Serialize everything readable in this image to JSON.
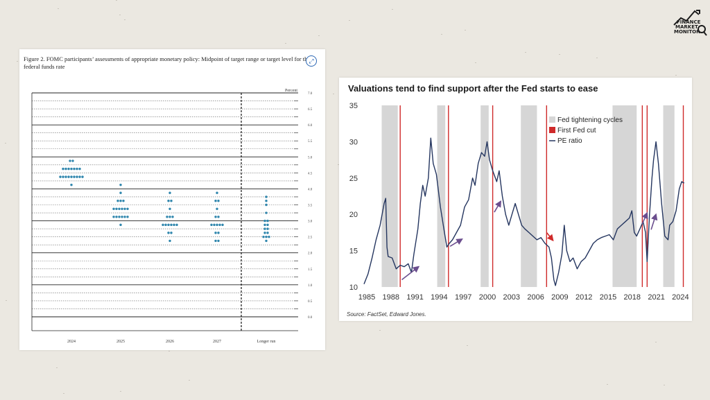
{
  "logo": {
    "line1": "FINANCE",
    "line2": "MARKET",
    "line3": "MONITOR"
  },
  "charts": [
    {
      "caption": "Figure 2.  FOMC participants’ assessments of appropriate monetary policy:  Midpoint of target range or target level for the federal funds rate",
      "chart_data": {
        "type": "scatter",
        "ylabel": "Percent",
        "ylim": [
          0,
          7
        ],
        "yticks": [
          "0.0",
          "0.5",
          "1.0",
          "1.5",
          "2.0",
          "2.5",
          "3.0",
          "3.5",
          "4.0",
          "4.5",
          "5.0",
          "5.5",
          "6.0",
          "6.5",
          "7.0"
        ],
        "categories": [
          "2024",
          "2025",
          "2026",
          "2027",
          "Longer run"
        ],
        "dots": [
          {
            "category": "2024",
            "levels": [
              {
                "rate": 4.125,
                "count": 1
              },
              {
                "rate": 4.375,
                "count": 9
              },
              {
                "rate": 4.625,
                "count": 7
              },
              {
                "rate": 4.875,
                "count": 2
              }
            ]
          },
          {
            "category": "2025",
            "levels": [
              {
                "rate": 2.875,
                "count": 1
              },
              {
                "rate": 3.125,
                "count": 6
              },
              {
                "rate": 3.375,
                "count": 6
              },
              {
                "rate": 3.625,
                "count": 3
              },
              {
                "rate": 3.875,
                "count": 1
              },
              {
                "rate": 4.125,
                "count": 1
              }
            ]
          },
          {
            "category": "2026",
            "levels": [
              {
                "rate": 2.375,
                "count": 1
              },
              {
                "rate": 2.625,
                "count": 2
              },
              {
                "rate": 2.875,
                "count": 6
              },
              {
                "rate": 3.125,
                "count": 3
              },
              {
                "rate": 3.375,
                "count": 1
              },
              {
                "rate": 3.625,
                "count": 2
              },
              {
                "rate": 3.875,
                "count": 1
              }
            ]
          },
          {
            "category": "2027",
            "levels": [
              {
                "rate": 2.375,
                "count": 2
              },
              {
                "rate": 2.625,
                "count": 2
              },
              {
                "rate": 2.875,
                "count": 5
              },
              {
                "rate": 3.125,
                "count": 2
              },
              {
                "rate": 3.375,
                "count": 1
              },
              {
                "rate": 3.625,
                "count": 2
              },
              {
                "rate": 3.875,
                "count": 1
              }
            ]
          },
          {
            "category": "Longer run",
            "levels": [
              {
                "rate": 2.375,
                "count": 1
              },
              {
                "rate": 2.5,
                "count": 3
              },
              {
                "rate": 2.625,
                "count": 2
              },
              {
                "rate": 2.75,
                "count": 2
              },
              {
                "rate": 2.875,
                "count": 2
              },
              {
                "rate": 3.0,
                "count": 2
              },
              {
                "rate": 3.25,
                "count": 1
              },
              {
                "rate": 3.5,
                "count": 1
              },
              {
                "rate": 3.625,
                "count": 1
              },
              {
                "rate": 3.75,
                "count": 1
              }
            ]
          }
        ],
        "colors": {
          "dot": "#2f86ad"
        }
      }
    },
    {
      "title": "Valuations tend to find support after the Fed starts to ease",
      "source": "Source: FactSet, Edward Jones.",
      "chart_data": {
        "type": "line",
        "ylim": [
          10,
          35
        ],
        "yticks": [
          10,
          15,
          20,
          25,
          30,
          35
        ],
        "xlim": [
          1985,
          2025
        ],
        "xticks": [
          1985,
          1988,
          1991,
          1994,
          1997,
          2000,
          2003,
          2006,
          2009,
          2012,
          2015,
          2018,
          2021,
          2024
        ],
        "legend": {
          "position": "top-right",
          "items": [
            "Fed tightening cycles",
            "First Fed cut",
            "PE ratio"
          ]
        },
        "tightening_cycles": [
          [
            1987.2,
            1989.2
          ],
          [
            1994.1,
            1995.1
          ],
          [
            1999.5,
            2000.5
          ],
          [
            2004.5,
            2006.5
          ],
          [
            2015.9,
            2018.9
          ],
          [
            2022.2,
            2023.6
          ]
        ],
        "first_fed_cuts": [
          1989.5,
          1995.5,
          2001.0,
          2007.7,
          2019.6,
          2020.2,
          2024.7
        ],
        "pe_ratio": [
          [
            1985.0,
            10.4
          ],
          [
            1985.5,
            11.8
          ],
          [
            1986.0,
            14.0
          ],
          [
            1986.5,
            16.5
          ],
          [
            1987.0,
            18.5
          ],
          [
            1987.5,
            21.5
          ],
          [
            1987.7,
            22.2
          ],
          [
            1987.85,
            15.5
          ],
          [
            1988.0,
            14.2
          ],
          [
            1988.5,
            14.0
          ],
          [
            1989.0,
            12.5
          ],
          [
            1989.5,
            13.0
          ],
          [
            1990.0,
            12.8
          ],
          [
            1990.5,
            13.2
          ],
          [
            1990.9,
            12.0
          ],
          [
            1991.2,
            14.5
          ],
          [
            1991.7,
            18.0
          ],
          [
            1992.0,
            21.5
          ],
          [
            1992.3,
            24.0
          ],
          [
            1992.6,
            22.5
          ],
          [
            1993.0,
            25.0
          ],
          [
            1993.3,
            30.5
          ],
          [
            1993.6,
            27.0
          ],
          [
            1994.0,
            25.5
          ],
          [
            1994.5,
            21.0
          ],
          [
            1995.0,
            17.5
          ],
          [
            1995.3,
            15.5
          ],
          [
            1995.6,
            16.0
          ],
          [
            1996.0,
            16.5
          ],
          [
            1996.5,
            17.5
          ],
          [
            1997.0,
            18.5
          ],
          [
            1997.5,
            21.0
          ],
          [
            1998.0,
            22.0
          ],
          [
            1998.5,
            25.0
          ],
          [
            1998.8,
            24.0
          ],
          [
            1999.2,
            27.0
          ],
          [
            1999.6,
            28.5
          ],
          [
            2000.0,
            28.0
          ],
          [
            2000.3,
            30.0
          ],
          [
            2000.6,
            27.5
          ],
          [
            2001.0,
            26.0
          ],
          [
            2001.5,
            24.5
          ],
          [
            2001.8,
            26.0
          ],
          [
            2002.2,
            22.5
          ],
          [
            2002.6,
            20.0
          ],
          [
            2003.0,
            18.5
          ],
          [
            2003.4,
            20.0
          ],
          [
            2003.8,
            21.5
          ],
          [
            2004.2,
            20.0
          ],
          [
            2004.6,
            18.5
          ],
          [
            2005.0,
            18.0
          ],
          [
            2005.5,
            17.5
          ],
          [
            2006.0,
            17.0
          ],
          [
            2006.5,
            16.5
          ],
          [
            2007.0,
            16.8
          ],
          [
            2007.5,
            16.0
          ],
          [
            2008.0,
            15.5
          ],
          [
            2008.3,
            14.0
          ],
          [
            2008.6,
            11.0
          ],
          [
            2008.8,
            10.2
          ],
          [
            2009.2,
            12.0
          ],
          [
            2009.6,
            14.5
          ],
          [
            2009.9,
            18.5
          ],
          [
            2010.2,
            15.0
          ],
          [
            2010.6,
            13.5
          ],
          [
            2011.0,
            14.0
          ],
          [
            2011.5,
            12.5
          ],
          [
            2012.0,
            13.5
          ],
          [
            2012.5,
            14.0
          ],
          [
            2013.0,
            15.0
          ],
          [
            2013.5,
            16.0
          ],
          [
            2014.0,
            16.5
          ],
          [
            2014.5,
            16.8
          ],
          [
            2015.0,
            17.0
          ],
          [
            2015.5,
            17.2
          ],
          [
            2016.0,
            16.5
          ],
          [
            2016.5,
            18.0
          ],
          [
            2017.0,
            18.5
          ],
          [
            2017.5,
            19.0
          ],
          [
            2018.0,
            19.5
          ],
          [
            2018.3,
            20.5
          ],
          [
            2018.6,
            17.5
          ],
          [
            2018.9,
            17.0
          ],
          [
            2019.3,
            18.0
          ],
          [
            2019.7,
            19.0
          ],
          [
            2020.0,
            17.5
          ],
          [
            2020.2,
            13.5
          ],
          [
            2020.5,
            20.0
          ],
          [
            2020.8,
            25.0
          ],
          [
            2021.0,
            27.5
          ],
          [
            2021.3,
            30.0
          ],
          [
            2021.6,
            27.0
          ],
          [
            2022.0,
            21.5
          ],
          [
            2022.4,
            17.0
          ],
          [
            2022.8,
            16.5
          ],
          [
            2023.0,
            18.5
          ],
          [
            2023.4,
            19.0
          ],
          [
            2023.8,
            20.5
          ],
          [
            2024.2,
            23.5
          ],
          [
            2024.5,
            24.5
          ],
          [
            2024.8,
            24.3
          ]
        ],
        "colors": {
          "line": "#24355f",
          "shade": "#d6d6d6",
          "cut": "#cf2a2a",
          "arrow_up": "#6b4e8e",
          "arrow_down": "#cf2a2a"
        }
      }
    }
  ]
}
